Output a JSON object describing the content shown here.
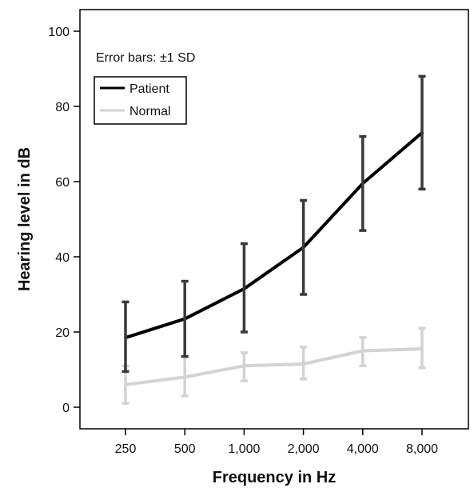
{
  "chart_data": {
    "type": "line",
    "title": "",
    "xlabel": "Frequency in Hz",
    "ylabel": "Hearing level in dB",
    "categories": [
      "250",
      "500",
      "1,000",
      "2,000",
      "4,000",
      "8,000"
    ],
    "yticks": [
      "0",
      "20",
      "40",
      "60",
      "80",
      "100"
    ],
    "ylim": [
      -7,
      107
    ],
    "grid": false,
    "legend_position": "top-left",
    "annotation": "Error bars: ±1 SD",
    "series": [
      {
        "name": "Patient",
        "color": "#000000",
        "errorbar_color": "#3a3a3a",
        "values": [
          18.5,
          23.5,
          31.5,
          42.5,
          59.5,
          73
        ],
        "error_low": [
          9.5,
          13.5,
          20,
          30,
          47,
          58
        ],
        "error_high": [
          28,
          33.5,
          43.5,
          55,
          72,
          88
        ]
      },
      {
        "name": "Normal",
        "color": "#d3d3d3",
        "errorbar_color": "#d3d3d3",
        "values": [
          6,
          8,
          11,
          11.5,
          15,
          15.5
        ],
        "error_low": [
          1,
          3,
          7,
          7.5,
          11,
          10.5
        ],
        "error_high": [
          11,
          13.5,
          14.5,
          16,
          18.5,
          21
        ]
      }
    ]
  }
}
